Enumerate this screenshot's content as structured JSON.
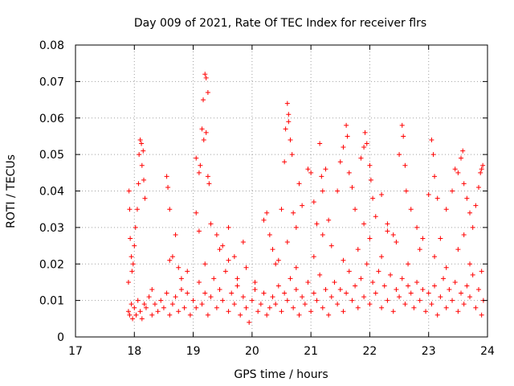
{
  "chart_data": {
    "type": "scatter",
    "title": "Day 009 of 2021, Rate Of TEC Index for receiver flrs",
    "xlabel": "GPS time / hours",
    "ylabel": "ROTI / TECUs",
    "xlim": [
      17,
      24
    ],
    "ylim": [
      0,
      0.08
    ],
    "x_ticks": [
      17,
      18,
      19,
      20,
      21,
      22,
      23,
      24
    ],
    "x_tick_labels": [
      "17",
      "18",
      "19",
      "20",
      "21",
      "22",
      "23",
      "24"
    ],
    "y_ticks": [
      0,
      0.01,
      0.02,
      0.03,
      0.04,
      0.05,
      0.06,
      0.07,
      0.08
    ],
    "y_tick_labels": [
      "0",
      "0.01",
      "0.02",
      "0.03",
      "0.04",
      "0.05",
      "0.06",
      "0.07",
      "0.08"
    ],
    "grid": true,
    "marker": "+",
    "series": [
      {
        "name": "ROTI",
        "color": "#ff0000",
        "points": [
          [
            17.9,
            0.007
          ],
          [
            17.92,
            0.006
          ],
          [
            17.95,
            0.009
          ],
          [
            17.97,
            0.005
          ],
          [
            18.0,
            0.008
          ],
          [
            18.03,
            0.006
          ],
          [
            18.06,
            0.01
          ],
          [
            18.1,
            0.007
          ],
          [
            18.13,
            0.005
          ],
          [
            18.17,
            0.009
          ],
          [
            18.2,
            0.008
          ],
          [
            18.25,
            0.011
          ],
          [
            18.3,
            0.006
          ],
          [
            18.35,
            0.009
          ],
          [
            18.4,
            0.007
          ],
          [
            18.45,
            0.01
          ],
          [
            18.5,
            0.008
          ],
          [
            18.55,
            0.012
          ],
          [
            18.6,
            0.006
          ],
          [
            18.65,
            0.009
          ],
          [
            18.7,
            0.011
          ],
          [
            18.75,
            0.007
          ],
          [
            18.8,
            0.013
          ],
          [
            18.85,
            0.008
          ],
          [
            18.9,
            0.012
          ],
          [
            18.95,
            0.006
          ],
          [
            19.0,
            0.01
          ],
          [
            19.05,
            0.008
          ],
          [
            19.1,
            0.015
          ],
          [
            19.15,
            0.009
          ],
          [
            19.2,
            0.012
          ],
          [
            19.25,
            0.006
          ],
          [
            19.3,
            0.011
          ],
          [
            19.35,
            0.016
          ],
          [
            19.4,
            0.008
          ],
          [
            19.45,
            0.013
          ],
          [
            19.5,
            0.01
          ],
          [
            19.55,
            0.018
          ],
          [
            19.6,
            0.007
          ],
          [
            19.65,
            0.012
          ],
          [
            19.7,
            0.009
          ],
          [
            19.75,
            0.014
          ],
          [
            19.8,
            0.006
          ],
          [
            19.85,
            0.011
          ],
          [
            19.9,
            0.008
          ],
          [
            19.95,
            0.004
          ],
          [
            20.0,
            0.01
          ],
          [
            20.05,
            0.013
          ],
          [
            20.1,
            0.007
          ],
          [
            20.15,
            0.009
          ],
          [
            20.2,
            0.012
          ],
          [
            20.25,
            0.006
          ],
          [
            20.3,
            0.008
          ],
          [
            20.35,
            0.011
          ],
          [
            20.4,
            0.009
          ],
          [
            20.45,
            0.014
          ],
          [
            20.5,
            0.007
          ],
          [
            20.55,
            0.012
          ],
          [
            20.6,
            0.01
          ],
          [
            20.65,
            0.016
          ],
          [
            20.7,
            0.008
          ],
          [
            20.75,
            0.013
          ],
          [
            20.8,
            0.006
          ],
          [
            20.85,
            0.011
          ],
          [
            20.9,
            0.009
          ],
          [
            20.95,
            0.015
          ],
          [
            21.0,
            0.007
          ],
          [
            21.05,
            0.012
          ],
          [
            21.1,
            0.01
          ],
          [
            21.15,
            0.017
          ],
          [
            21.2,
            0.008
          ],
          [
            21.25,
            0.013
          ],
          [
            21.3,
            0.006
          ],
          [
            21.35,
            0.011
          ],
          [
            21.4,
            0.015
          ],
          [
            21.45,
            0.009
          ],
          [
            21.5,
            0.013
          ],
          [
            21.55,
            0.007
          ],
          [
            21.6,
            0.012
          ],
          [
            21.65,
            0.018
          ],
          [
            21.7,
            0.01
          ],
          [
            21.75,
            0.014
          ],
          [
            21.8,
            0.008
          ],
          [
            21.85,
            0.016
          ],
          [
            21.9,
            0.011
          ],
          [
            21.95,
            0.02
          ],
          [
            22.0,
            0.009
          ],
          [
            22.05,
            0.015
          ],
          [
            22.1,
            0.012
          ],
          [
            22.15,
            0.018
          ],
          [
            22.2,
            0.008
          ],
          [
            22.25,
            0.014
          ],
          [
            22.3,
            0.01
          ],
          [
            22.35,
            0.017
          ],
          [
            22.4,
            0.007
          ],
          [
            22.45,
            0.013
          ],
          [
            22.5,
            0.011
          ],
          [
            22.55,
            0.016
          ],
          [
            22.6,
            0.009
          ],
          [
            22.65,
            0.014
          ],
          [
            22.7,
            0.012
          ],
          [
            22.75,
            0.008
          ],
          [
            22.8,
            0.015
          ],
          [
            22.85,
            0.01
          ],
          [
            22.9,
            0.013
          ],
          [
            22.95,
            0.007
          ],
          [
            23.0,
            0.012
          ],
          [
            23.05,
            0.009
          ],
          [
            23.1,
            0.014
          ],
          [
            23.15,
            0.006
          ],
          [
            23.2,
            0.011
          ],
          [
            23.25,
            0.016
          ],
          [
            23.3,
            0.008
          ],
          [
            23.35,
            0.013
          ],
          [
            23.4,
            0.01
          ],
          [
            23.45,
            0.015
          ],
          [
            23.5,
            0.007
          ],
          [
            23.55,
            0.012
          ],
          [
            23.6,
            0.009
          ],
          [
            23.65,
            0.014
          ],
          [
            23.7,
            0.011
          ],
          [
            23.75,
            0.017
          ],
          [
            23.8,
            0.008
          ],
          [
            23.85,
            0.013
          ],
          [
            23.9,
            0.006
          ],
          [
            23.93,
            0.01
          ],
          [
            17.91,
            0.04
          ],
          [
            17.92,
            0.035
          ],
          [
            17.93,
            0.027
          ],
          [
            17.95,
            0.022
          ],
          [
            17.96,
            0.018
          ],
          [
            17.9,
            0.015
          ],
          [
            17.98,
            0.02
          ],
          [
            18.0,
            0.025
          ],
          [
            18.02,
            0.03
          ],
          [
            18.05,
            0.035
          ],
          [
            18.07,
            0.042
          ],
          [
            18.08,
            0.05
          ],
          [
            18.1,
            0.054
          ],
          [
            18.12,
            0.053
          ],
          [
            18.13,
            0.047
          ],
          [
            18.15,
            0.051
          ],
          [
            18.16,
            0.043
          ],
          [
            18.18,
            0.038
          ],
          [
            18.55,
            0.044
          ],
          [
            18.57,
            0.041
          ],
          [
            18.6,
            0.035
          ],
          [
            18.65,
            0.022
          ],
          [
            18.7,
            0.028
          ],
          [
            18.75,
            0.019
          ],
          [
            18.8,
            0.016
          ],
          [
            19.05,
            0.049
          ],
          [
            19.1,
            0.045
          ],
          [
            19.12,
            0.047
          ],
          [
            19.15,
            0.057
          ],
          [
            19.18,
            0.054
          ],
          [
            19.2,
            0.072
          ],
          [
            19.22,
            0.071
          ],
          [
            19.25,
            0.067
          ],
          [
            19.17,
            0.065
          ],
          [
            19.22,
            0.056
          ],
          [
            19.25,
            0.044
          ],
          [
            19.27,
            0.042
          ],
          [
            19.3,
            0.031
          ],
          [
            19.05,
            0.034
          ],
          [
            19.1,
            0.029
          ],
          [
            19.4,
            0.028
          ],
          [
            19.5,
            0.025
          ],
          [
            19.6,
            0.03
          ],
          [
            19.7,
            0.022
          ],
          [
            19.85,
            0.026
          ],
          [
            19.9,
            0.019
          ],
          [
            20.2,
            0.032
          ],
          [
            20.25,
            0.034
          ],
          [
            20.3,
            0.028
          ],
          [
            20.35,
            0.024
          ],
          [
            20.4,
            0.02
          ],
          [
            20.5,
            0.035
          ],
          [
            20.55,
            0.048
          ],
          [
            20.57,
            0.057
          ],
          [
            20.6,
            0.064
          ],
          [
            20.62,
            0.061
          ],
          [
            20.65,
            0.054
          ],
          [
            20.68,
            0.05
          ],
          [
            20.62,
            0.059
          ],
          [
            20.7,
            0.034
          ],
          [
            20.75,
            0.03
          ],
          [
            20.8,
            0.042
          ],
          [
            20.85,
            0.036
          ],
          [
            20.95,
            0.046
          ],
          [
            21.0,
            0.045
          ],
          [
            21.05,
            0.037
          ],
          [
            21.1,
            0.031
          ],
          [
            21.15,
            0.053
          ],
          [
            21.18,
            0.044
          ],
          [
            21.2,
            0.04
          ],
          [
            21.25,
            0.046
          ],
          [
            21.3,
            0.032
          ],
          [
            21.45,
            0.04
          ],
          [
            21.5,
            0.048
          ],
          [
            21.55,
            0.052
          ],
          [
            21.6,
            0.058
          ],
          [
            21.62,
            0.055
          ],
          [
            21.65,
            0.045
          ],
          [
            21.7,
            0.041
          ],
          [
            21.75,
            0.035
          ],
          [
            21.85,
            0.049
          ],
          [
            21.9,
            0.052
          ],
          [
            21.92,
            0.056
          ],
          [
            21.95,
            0.053
          ],
          [
            22.0,
            0.047
          ],
          [
            22.02,
            0.043
          ],
          [
            22.05,
            0.038
          ],
          [
            22.1,
            0.033
          ],
          [
            22.2,
            0.039
          ],
          [
            22.3,
            0.031
          ],
          [
            22.4,
            0.028
          ],
          [
            22.5,
            0.05
          ],
          [
            22.55,
            0.058
          ],
          [
            22.57,
            0.055
          ],
          [
            22.6,
            0.047
          ],
          [
            22.62,
            0.04
          ],
          [
            22.7,
            0.035
          ],
          [
            22.8,
            0.03
          ],
          [
            22.9,
            0.027
          ],
          [
            23.0,
            0.039
          ],
          [
            23.05,
            0.054
          ],
          [
            23.08,
            0.05
          ],
          [
            23.1,
            0.044
          ],
          [
            23.15,
            0.038
          ],
          [
            23.3,
            0.035
          ],
          [
            23.4,
            0.04
          ],
          [
            23.45,
            0.046
          ],
          [
            23.5,
            0.045
          ],
          [
            23.55,
            0.049
          ],
          [
            23.58,
            0.051
          ],
          [
            23.6,
            0.042
          ],
          [
            23.65,
            0.038
          ],
          [
            23.7,
            0.034
          ],
          [
            23.75,
            0.03
          ],
          [
            23.8,
            0.036
          ],
          [
            23.85,
            0.041
          ],
          [
            23.88,
            0.045
          ],
          [
            23.9,
            0.046
          ],
          [
            23.92,
            0.047
          ],
          [
            18.3,
            0.013
          ],
          [
            18.6,
            0.021
          ],
          [
            18.9,
            0.018
          ],
          [
            19.2,
            0.02
          ],
          [
            19.45,
            0.024
          ],
          [
            19.75,
            0.016
          ],
          [
            20.05,
            0.015
          ],
          [
            20.45,
            0.021
          ],
          [
            20.75,
            0.019
          ],
          [
            21.05,
            0.022
          ],
          [
            21.35,
            0.025
          ],
          [
            21.55,
            0.021
          ],
          [
            21.8,
            0.024
          ],
          [
            22.0,
            0.027
          ],
          [
            22.2,
            0.022
          ],
          [
            22.45,
            0.026
          ],
          [
            22.65,
            0.02
          ],
          [
            22.85,
            0.024
          ],
          [
            23.1,
            0.022
          ],
          [
            23.3,
            0.019
          ],
          [
            23.5,
            0.024
          ],
          [
            23.7,
            0.02
          ],
          [
            23.9,
            0.018
          ],
          [
            23.6,
            0.028
          ],
          [
            23.2,
            0.027
          ],
          [
            22.3,
            0.029
          ],
          [
            21.9,
            0.031
          ],
          [
            21.2,
            0.028
          ],
          [
            20.6,
            0.026
          ],
          [
            19.6,
            0.021
          ]
        ]
      }
    ]
  }
}
